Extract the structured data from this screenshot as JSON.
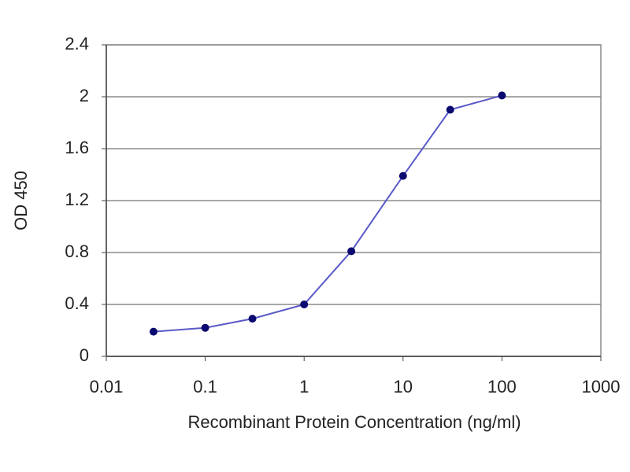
{
  "chart_data": {
    "type": "line",
    "x_label": "Recombinant Protein Concentration (ng/ml)",
    "y_label": "OD 450",
    "x": [
      0.03,
      0.1,
      0.3,
      1,
      3,
      10,
      30,
      100
    ],
    "series": [
      {
        "name": "OD",
        "color": "#5a5ac8",
        "marker_color": "#0a0a70",
        "values": [
          0.19,
          0.22,
          0.29,
          0.4,
          0.81,
          1.39,
          1.9,
          2.01
        ]
      }
    ],
    "xlim": [
      0.01,
      1000
    ],
    "xticks": [
      0.01,
      0.1,
      1,
      10,
      100,
      1000
    ],
    "x_log": true,
    "ylim": [
      0,
      2.4
    ],
    "yticks": [
      0,
      0.4,
      0.8,
      1.2,
      1.6,
      2,
      2.4
    ],
    "grid": true
  }
}
